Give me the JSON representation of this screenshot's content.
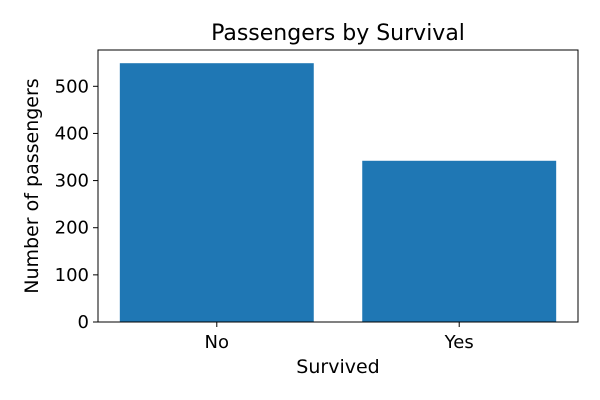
{
  "chart_data": {
    "type": "bar",
    "title": "Passengers by Survival",
    "xlabel": "Survived",
    "ylabel": "Number of passengers",
    "categories": [
      "No",
      "Yes"
    ],
    "values": [
      549,
      342
    ],
    "ylim": [
      0,
      577
    ],
    "yticks": [
      0,
      100,
      200,
      300,
      400,
      500
    ],
    "grid": false,
    "legend": "none",
    "bar_color": "#1f77b4"
  }
}
